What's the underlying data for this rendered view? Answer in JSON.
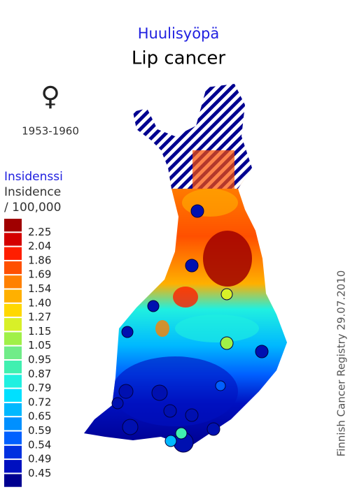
{
  "header": {
    "title_fi": "Huulisyöpä",
    "title_en": "Lip cancer",
    "sex_symbol": "♀",
    "period": "1953-1960"
  },
  "legend": {
    "title_fi": "Insidenssi",
    "title_en": "Insidence",
    "unit": "/ 100,000",
    "colors": [
      "#a00000",
      "#d40000",
      "#ff1e00",
      "#ff5000",
      "#ff8000",
      "#ffb000",
      "#ffd800",
      "#d8f028",
      "#a0f048",
      "#70ec88",
      "#40f0b0",
      "#20f0e0",
      "#00e0ff",
      "#00b8ff",
      "#0090ff",
      "#0060ff",
      "#0030e0",
      "#0010c0",
      "#000090"
    ],
    "labels": [
      "2.25",
      "2.04",
      "1.86",
      "1.69",
      "1.54",
      "1.40",
      "1.27",
      "1.15",
      "1.05",
      "0.95",
      "0.87",
      "0.79",
      "0.72",
      "0.65",
      "0.59",
      "0.54",
      "0.49",
      "0.45"
    ]
  },
  "credit": "Finnish Cancer Registry 29.07.2010"
}
